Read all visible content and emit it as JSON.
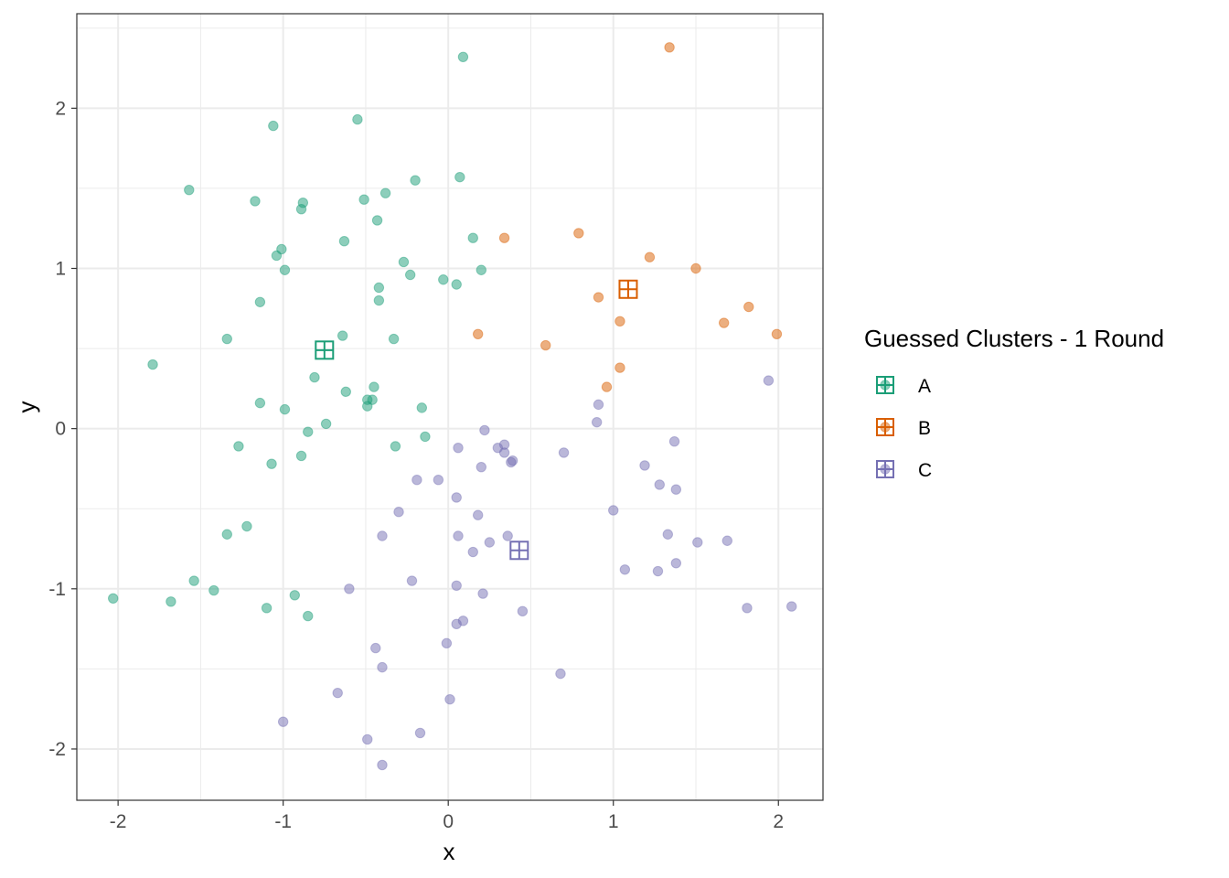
{
  "chart_data": {
    "type": "scatter",
    "xlabel": "x",
    "ylabel": "y",
    "xlim": [
      -2.25,
      2.27
    ],
    "ylim": [
      -2.32,
      2.59
    ],
    "x_ticks": [
      -2,
      -1,
      0,
      1,
      2
    ],
    "y_ticks": [
      -2,
      -1,
      0,
      1,
      2
    ],
    "x_tick_labels": [
      "-2",
      "-1",
      "0",
      "1",
      "2"
    ],
    "y_tick_labels": [
      "-2",
      "-1",
      "0",
      "1",
      "2"
    ],
    "grid": true,
    "legend": {
      "title": "Guessed Clusters - 1 Round",
      "position": "right"
    },
    "series": [
      {
        "name": "A",
        "color": "#1b9e77",
        "centroid": [
          -0.75,
          0.49
        ],
        "points": [
          [
            0.09,
            2.32
          ],
          [
            -1.06,
            1.89
          ],
          [
            -0.55,
            1.93
          ],
          [
            -1.57,
            1.49
          ],
          [
            -1.17,
            1.42
          ],
          [
            -0.88,
            1.41
          ],
          [
            -0.89,
            1.37
          ],
          [
            -0.51,
            1.43
          ],
          [
            -0.38,
            1.47
          ],
          [
            -0.2,
            1.55
          ],
          [
            0.07,
            1.57
          ],
          [
            -0.43,
            1.3
          ],
          [
            -0.63,
            1.17
          ],
          [
            0.15,
            1.19
          ],
          [
            -1.01,
            1.12
          ],
          [
            -1.04,
            1.08
          ],
          [
            -0.99,
            0.99
          ],
          [
            0.2,
            0.99
          ],
          [
            -0.27,
            1.04
          ],
          [
            -0.23,
            0.96
          ],
          [
            -0.03,
            0.93
          ],
          [
            0.05,
            0.9
          ],
          [
            -0.42,
            0.88
          ],
          [
            -0.42,
            0.8
          ],
          [
            -1.14,
            0.79
          ],
          [
            -0.64,
            0.58
          ],
          [
            -0.33,
            0.56
          ],
          [
            -1.34,
            0.56
          ],
          [
            -1.79,
            0.4
          ],
          [
            -0.81,
            0.32
          ],
          [
            -0.45,
            0.26
          ],
          [
            -0.62,
            0.23
          ],
          [
            -1.14,
            0.16
          ],
          [
            -0.46,
            0.18
          ],
          [
            -0.49,
            0.18
          ],
          [
            -0.99,
            0.12
          ],
          [
            -0.49,
            0.14
          ],
          [
            -0.16,
            0.13
          ],
          [
            -0.74,
            0.03
          ],
          [
            -0.85,
            -0.02
          ],
          [
            -0.14,
            -0.05
          ],
          [
            -1.27,
            -0.11
          ],
          [
            -0.32,
            -0.11
          ],
          [
            -0.89,
            -0.17
          ],
          [
            -1.07,
            -0.22
          ],
          [
            -1.22,
            -0.61
          ],
          [
            -1.34,
            -0.66
          ],
          [
            -1.54,
            -0.95
          ],
          [
            -1.42,
            -1.01
          ],
          [
            -2.03,
            -1.06
          ],
          [
            -1.68,
            -1.08
          ],
          [
            -0.93,
            -1.04
          ],
          [
            -1.1,
            -1.12
          ],
          [
            -0.85,
            -1.17
          ]
        ]
      },
      {
        "name": "B",
        "color": "#d95f02",
        "centroid": [
          1.09,
          0.87
        ],
        "points": [
          [
            1.34,
            2.38
          ],
          [
            0.79,
            1.22
          ],
          [
            0.34,
            1.19
          ],
          [
            1.22,
            1.07
          ],
          [
            1.5,
            1.0
          ],
          [
            0.91,
            0.82
          ],
          [
            1.82,
            0.76
          ],
          [
            1.04,
            0.67
          ],
          [
            1.67,
            0.66
          ],
          [
            0.18,
            0.59
          ],
          [
            1.99,
            0.59
          ],
          [
            0.59,
            0.52
          ],
          [
            1.04,
            0.38
          ],
          [
            0.96,
            0.26
          ]
        ]
      },
      {
        "name": "C",
        "color": "#7570b3",
        "centroid": [
          0.43,
          -0.76
        ],
        "points": [
          [
            1.94,
            0.3
          ],
          [
            0.91,
            0.15
          ],
          [
            0.9,
            0.04
          ],
          [
            0.22,
            -0.01
          ],
          [
            1.37,
            -0.08
          ],
          [
            0.34,
            -0.1
          ],
          [
            0.06,
            -0.12
          ],
          [
            0.3,
            -0.12
          ],
          [
            0.34,
            -0.15
          ],
          [
            0.7,
            -0.15
          ],
          [
            0.39,
            -0.2
          ],
          [
            0.38,
            -0.21
          ],
          [
            1.19,
            -0.23
          ],
          [
            0.2,
            -0.24
          ],
          [
            -0.06,
            -0.32
          ],
          [
            -0.19,
            -0.32
          ],
          [
            1.28,
            -0.35
          ],
          [
            1.38,
            -0.38
          ],
          [
            0.05,
            -0.43
          ],
          [
            -0.3,
            -0.52
          ],
          [
            1.0,
            -0.51
          ],
          [
            0.18,
            -0.54
          ],
          [
            -0.4,
            -0.67
          ],
          [
            0.06,
            -0.67
          ],
          [
            0.36,
            -0.67
          ],
          [
            1.33,
            -0.66
          ],
          [
            0.25,
            -0.71
          ],
          [
            1.51,
            -0.71
          ],
          [
            1.69,
            -0.7
          ],
          [
            0.15,
            -0.77
          ],
          [
            1.07,
            -0.88
          ],
          [
            1.27,
            -0.89
          ],
          [
            1.38,
            -0.84
          ],
          [
            -0.22,
            -0.95
          ],
          [
            0.05,
            -0.98
          ],
          [
            -0.6,
            -1.0
          ],
          [
            0.21,
            -1.03
          ],
          [
            1.81,
            -1.12
          ],
          [
            2.08,
            -1.11
          ],
          [
            0.45,
            -1.14
          ],
          [
            0.09,
            -1.2
          ],
          [
            0.05,
            -1.22
          ],
          [
            -0.01,
            -1.34
          ],
          [
            -0.44,
            -1.37
          ],
          [
            -0.4,
            -1.49
          ],
          [
            0.68,
            -1.53
          ],
          [
            -0.67,
            -1.65
          ],
          [
            0.01,
            -1.69
          ],
          [
            -1.0,
            -1.83
          ],
          [
            -0.17,
            -1.9
          ],
          [
            -0.49,
            -1.94
          ],
          [
            -0.4,
            -2.1
          ]
        ]
      }
    ]
  }
}
